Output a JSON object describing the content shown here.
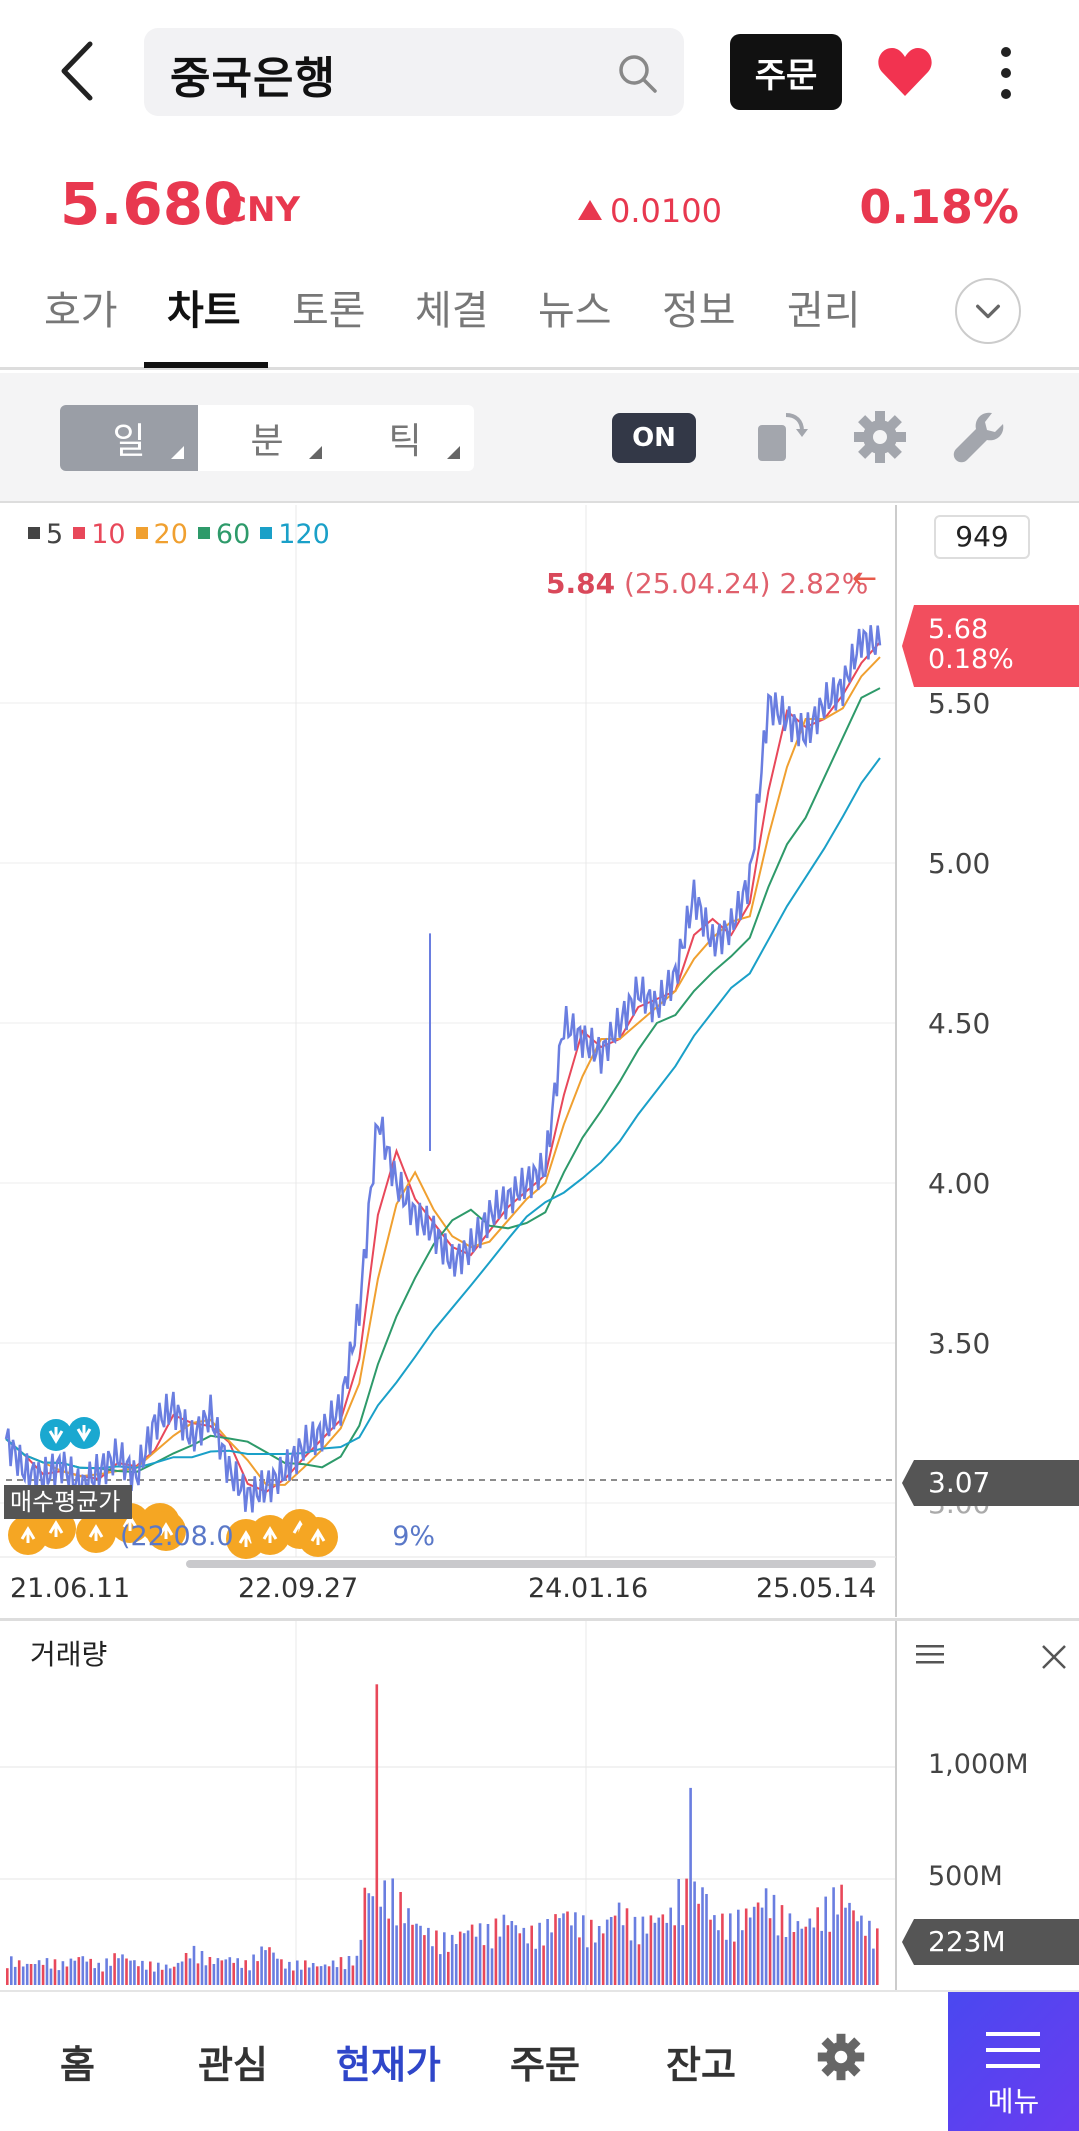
{
  "header": {
    "title": "중국은행",
    "order_label": "주문",
    "icons": {
      "back": "chevron-left-icon",
      "search": "search-icon",
      "favorite": "heart-icon",
      "more": "kebab-icon"
    }
  },
  "quote": {
    "price": "5.680",
    "currency": "CNY",
    "change": "0.0100",
    "change_pct": "0.18%",
    "up_color": "#e8384f"
  },
  "tabs": [
    "호가",
    "차트",
    "토론",
    "체결",
    "뉴스",
    "정보",
    "권리"
  ],
  "active_tab": "차트",
  "toolbar": {
    "periods": [
      "일",
      "분",
      "틱"
    ],
    "active_period": "일",
    "on_label": "ON"
  },
  "chart_data": {
    "type": "line",
    "legend": [
      {
        "label": "5",
        "color": "#444444"
      },
      {
        "label": "10",
        "color": "#e8485a"
      },
      {
        "label": "20",
        "color": "#f0a030"
      },
      {
        "label": "60",
        "color": "#2e9a6a"
      },
      {
        "label": "120",
        "color": "#1aa0c8"
      }
    ],
    "zoom": "949",
    "x_ticks": [
      "21.06.11",
      "22.09.27",
      "24.01.16",
      "25.05.14"
    ],
    "y_ticks": [
      "5.50",
      "5.00",
      "4.50",
      "4.00",
      "3.50",
      "3.00"
    ],
    "ylim": [
      2.9,
      5.95
    ],
    "high": {
      "value": "5.84",
      "date": "(25.04.24)",
      "pct": "2.82%"
    },
    "current": {
      "price": "5.68",
      "pct": "0.18%"
    },
    "reference_line": "3.07",
    "low": {
      "date": "(22.08.0",
      "pct": "9%"
    },
    "buy_label": "매수평균가",
    "series": [
      {
        "name": "price",
        "x": [
          0,
          20,
          40,
          60,
          80,
          100,
          120,
          140,
          160,
          180,
          200,
          220,
          240,
          260,
          280,
          300,
          320,
          340,
          360,
          380,
          400,
          420,
          440,
          460,
          480,
          500,
          520,
          540,
          560,
          580,
          600,
          620,
          640,
          660,
          680,
          700,
          720,
          740,
          760,
          780,
          800,
          820,
          840,
          860,
          880,
          900,
          920,
          940
        ],
        "y": [
          3.2,
          3.1,
          3.08,
          3.12,
          3.05,
          3.1,
          3.15,
          3.08,
          3.25,
          3.3,
          3.2,
          3.28,
          3.1,
          3.02,
          3.05,
          3.1,
          3.18,
          3.22,
          3.3,
          3.6,
          4.2,
          4.0,
          3.9,
          3.85,
          3.75,
          3.8,
          3.9,
          3.95,
          4.0,
          4.05,
          4.5,
          4.45,
          4.4,
          4.5,
          4.6,
          4.55,
          4.65,
          4.9,
          4.75,
          4.8,
          4.95,
          5.5,
          5.45,
          5.4,
          5.5,
          5.55,
          5.7,
          5.68
        ]
      }
    ]
  },
  "volume": {
    "title": "거래량",
    "y_ticks": [
      "1,000M",
      "500M"
    ],
    "current": "223M",
    "values": [
      120,
      90,
      110,
      95,
      130,
      85,
      140,
      100,
      90,
      80,
      160,
      110,
      120,
      95,
      180,
      90,
      100,
      85,
      110,
      120,
      1230,
      400,
      280,
      220,
      200,
      260,
      240,
      300,
      230,
      250,
      330,
      280,
      240,
      350,
      260,
      300,
      320,
      820,
      300,
      280,
      320,
      400,
      300,
      260,
      330,
      420,
      300,
      223
    ]
  },
  "bottom_nav": {
    "items": [
      "홈",
      "관심",
      "현재가",
      "주문",
      "잔고"
    ],
    "active": "현재가",
    "menu_label": "메뉴",
    "accent": "#2f46c9"
  }
}
